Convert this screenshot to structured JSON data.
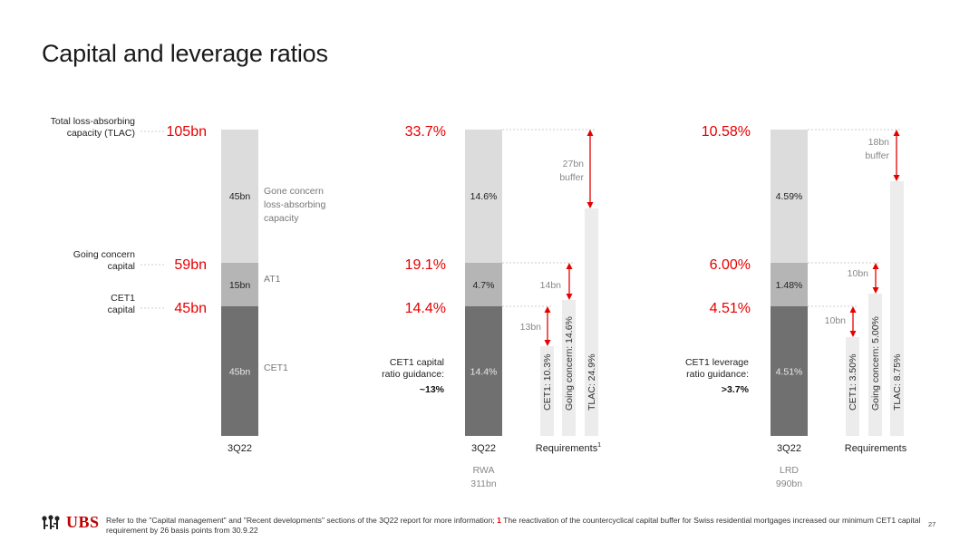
{
  "title": "Capital and leverage ratios",
  "colors": {
    "red": "#e60000",
    "bar_light": "#dcdcdc",
    "bar_mid": "#b5b5b5",
    "bar_dark": "#707070",
    "req_bar": "#ececec",
    "arrow": "#e60000"
  },
  "chart_data": [
    {
      "type": "bar",
      "category": "3Q22",
      "row_labels": [
        "Total loss-absorbing capacity (TLAC)",
        "Going concern capital",
        "CET1 capital"
      ],
      "row_values": [
        "105bn",
        "59bn",
        "45bn"
      ],
      "segments": [
        {
          "name": "CET1",
          "label": "45bn",
          "value": 45
        },
        {
          "name": "AT1",
          "label": "15bn",
          "value": 15
        },
        {
          "name": "Gone concern loss-absorbing capacity",
          "label": "45bn",
          "value": 45
        }
      ]
    },
    {
      "type": "bar",
      "category": "3Q22",
      "sub": [
        "RWA",
        "311bn"
      ],
      "row_values": [
        "33.7%",
        "19.1%",
        "14.4%"
      ],
      "guidance": {
        "text": [
          "CET1 capital",
          "ratio guidance:"
        ],
        "value": "~13%"
      },
      "segments": [
        {
          "label": "14.4%",
          "value": 14.4
        },
        {
          "label": "4.7%",
          "value": 4.7
        },
        {
          "label": "14.6%",
          "value": 14.6
        }
      ],
      "requirements_label": "Requirements",
      "requirements_footnote": "1",
      "requirements": [
        {
          "label": "CET1: 10.3%",
          "value": 10.3
        },
        {
          "label": "Going concern: 14.6%",
          "value": 14.6
        },
        {
          "label": "TLAC: 24.9%",
          "value": 24.9
        }
      ],
      "buffers": [
        {
          "label": "13bn",
          "from": 10.3,
          "to": 14.4
        },
        {
          "label": "14bn",
          "from": 14.6,
          "to": 19.1
        },
        {
          "label": [
            "27bn",
            "buffer"
          ],
          "from": 24.9,
          "to": 33.7
        }
      ]
    },
    {
      "type": "bar",
      "category": "3Q22",
      "sub": [
        "LRD",
        "990bn"
      ],
      "row_values": [
        "10.58%",
        "6.00%",
        "4.51%"
      ],
      "guidance": {
        "text": [
          "CET1 leverage",
          "ratio guidance:"
        ],
        "value": ">3.7%"
      },
      "segments": [
        {
          "label": "4.51%",
          "value": 4.51
        },
        {
          "label": "1.48%",
          "value": 1.48
        },
        {
          "label": "4.59%",
          "value": 4.59
        }
      ],
      "requirements_label": "Requirements",
      "requirements": [
        {
          "label": "CET1: 3.50%",
          "value": 3.5
        },
        {
          "label": "Going concern: 5.00%",
          "value": 5.0
        },
        {
          "label": "TLAC: 8.75%",
          "value": 8.75
        }
      ],
      "buffers": [
        {
          "label": "10bn",
          "from": 3.5,
          "to": 4.51
        },
        {
          "label": "10bn",
          "from": 5.0,
          "to": 6.0
        },
        {
          "label": [
            "18bn",
            "buffer"
          ],
          "from": 8.75,
          "to": 10.58
        }
      ]
    }
  ],
  "footer": {
    "logo": "UBS",
    "text_a": "Refer to the \"Capital management\" and \"Recent developments\" sections of the 3Q22 report for more information; ",
    "fn_num": "1",
    "text_b": " The reactivation of the countercyclical capital buffer for Swiss residential mortgages increased our minimum CET1 capital requirement by 26 basis points from 30.9.22",
    "page": "27"
  }
}
